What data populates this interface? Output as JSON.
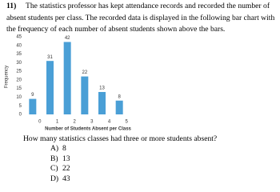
{
  "question": {
    "number": "11)",
    "text": "The statistics professor has kept attendance records and recorded the number of absent students per class. The recorded data is displayed in the following bar chart with the frequency of each number of absent students shown above the bars."
  },
  "chart_data": {
    "type": "bar",
    "categories": [
      "0",
      "1",
      "2",
      "3",
      "4",
      "5"
    ],
    "values": [
      9,
      31,
      42,
      22,
      13,
      8
    ],
    "color": "#4a9fd6",
    "ylim": [
      0,
      45
    ],
    "yticks": [
      0,
      5,
      10,
      15,
      20,
      25,
      30,
      35,
      40,
      45
    ],
    "y_label": "Frequency",
    "x_label": "Number of Students Absent per Class",
    "grid": false
  },
  "prompt": "How many statistics classes had three or more students absent?",
  "options": [
    {
      "letter": "A)",
      "text": "8"
    },
    {
      "letter": "B)",
      "text": "13"
    },
    {
      "letter": "C)",
      "text": "22"
    },
    {
      "letter": "D)",
      "text": "43"
    }
  ]
}
